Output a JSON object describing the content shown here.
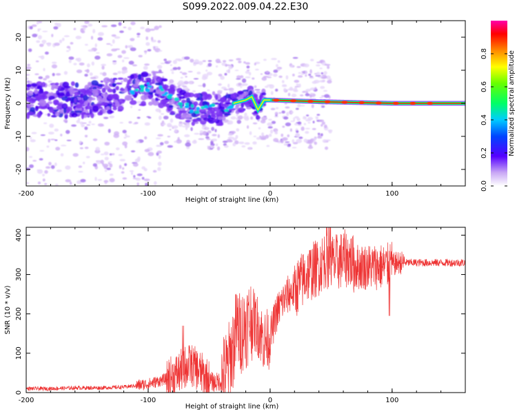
{
  "title": "S099.2022.009.04.22.E30",
  "colors": {
    "snr_line": "#ee3333",
    "spectrum_min": "#c8a0f0",
    "spectrum_mid": "#5500ff",
    "axis": "#000000"
  },
  "chart_data": [
    {
      "type": "heatmap",
      "xlabel": "Height of straight line (km)",
      "ylabel": "Frequency (Hz)",
      "xlim": [
        -200,
        160
      ],
      "ylim": [
        -25,
        25
      ],
      "xticks": [
        -200,
        -100,
        0,
        100
      ],
      "yticks": [
        20,
        10,
        0,
        -10,
        -20
      ],
      "colorbar": {
        "label": "Normalized spectral amplitude",
        "ticks": [
          "0.0",
          "0.2",
          "0.4",
          "0.6",
          "0.8"
        ],
        "range": [
          0,
          1
        ]
      },
      "ridge": [
        {
          "x": -200,
          "y": 1
        },
        {
          "x": -150,
          "y": 1
        },
        {
          "x": -120,
          "y": 3
        },
        {
          "x": -100,
          "y": 5
        },
        {
          "x": -90,
          "y": 4
        },
        {
          "x": -80,
          "y": 1
        },
        {
          "x": -70,
          "y": -1
        },
        {
          "x": -60,
          "y": -2
        },
        {
          "x": -50,
          "y": -1
        },
        {
          "x": -40,
          "y": -2
        },
        {
          "x": -30,
          "y": 0
        },
        {
          "x": -20,
          "y": 1
        },
        {
          "x": -15,
          "y": 2
        },
        {
          "x": -10,
          "y": -2
        },
        {
          "x": -5,
          "y": 1
        },
        {
          "x": 0,
          "y": 1
        },
        {
          "x": 40,
          "y": 0.5
        },
        {
          "x": 100,
          "y": 0
        },
        {
          "x": 160,
          "y": 0
        }
      ]
    },
    {
      "type": "line",
      "xlabel": "Height of straight line (km)",
      "ylabel": "SNR (10 * v/v)",
      "xlim": [
        -200,
        160
      ],
      "ylim": [
        0,
        420
      ],
      "xticks": [
        -200,
        -100,
        0,
        100
      ],
      "yticks": [
        0,
        100,
        200,
        300,
        400
      ],
      "series": [
        {
          "x": [
            -200,
            -180,
            -160,
            -140,
            -120,
            -110,
            -100,
            -90,
            -80,
            -75,
            -70,
            -65,
            -60,
            -55,
            -50,
            -45,
            -40,
            -35,
            -30,
            -27,
            -25,
            -20,
            -15,
            -10,
            -5,
            0,
            5,
            10,
            15,
            20,
            25,
            30,
            35,
            40,
            45,
            50,
            55,
            60,
            65,
            70,
            75,
            80,
            85,
            90,
            95,
            100,
            105,
            110,
            120,
            130,
            140,
            150,
            160
          ],
          "y": [
            10,
            10,
            12,
            12,
            14,
            18,
            22,
            30,
            40,
            50,
            65,
            70,
            60,
            45,
            30,
            25,
            30,
            60,
            120,
            170,
            150,
            170,
            190,
            170,
            130,
            140,
            200,
            230,
            250,
            260,
            280,
            300,
            310,
            320,
            340,
            330,
            330,
            340,
            340,
            320,
            320,
            320,
            320,
            320,
            320,
            325,
            330,
            330,
            330,
            330,
            330,
            330,
            330
          ]
        }
      ],
      "annotations": [
        {
          "x": -70,
          "y": 170
        },
        {
          "x": -25,
          "y": 320
        },
        {
          "x": 48,
          "y": 420
        },
        {
          "x": 98,
          "y": 195
        }
      ]
    }
  ]
}
